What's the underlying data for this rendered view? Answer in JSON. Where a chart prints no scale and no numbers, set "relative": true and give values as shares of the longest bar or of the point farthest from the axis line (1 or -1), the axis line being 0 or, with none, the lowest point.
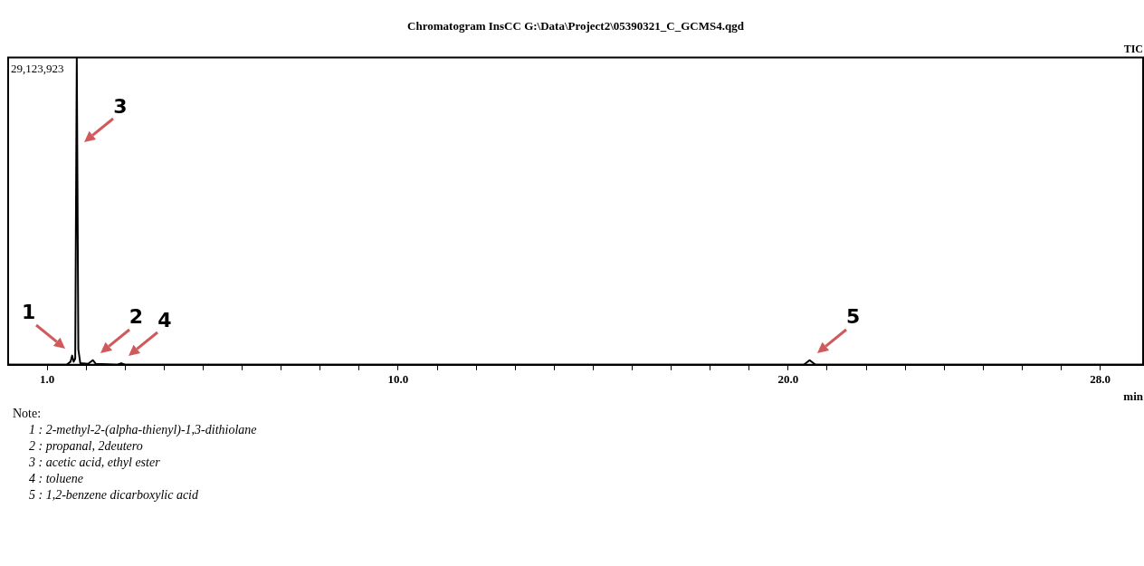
{
  "chart_data": {
    "type": "line",
    "title": "Chromatogram InsCC G:\\Data\\Project2\\05390321_C_GCMS4.qgd",
    "xlabel": "min",
    "relative": true,
    "x": [
      0.0,
      1.5,
      1.6,
      1.64,
      1.68,
      1.72,
      1.76,
      1.8,
      1.85,
      2.05,
      2.17,
      2.25,
      2.8,
      2.9,
      3.0,
      20.4,
      20.55,
      20.7,
      29.1
    ],
    "series": [
      {
        "color": "#000000",
        "values": [
          0,
          0,
          0.01,
          0.03,
          0.01,
          0.02,
          1.0,
          0.05,
          0.005,
          0.003,
          0.015,
          0.003,
          0,
          0.005,
          0,
          0,
          0.015,
          0,
          0
        ]
      }
    ],
    "xlim": [
      0,
      29.1
    ],
    "xticks": [
      {
        "value": 1,
        "label": "1.0"
      },
      {
        "value": 2,
        "label": null
      },
      {
        "value": 3,
        "label": null
      },
      {
        "value": 4,
        "label": null
      },
      {
        "value": 5,
        "label": null
      },
      {
        "value": 6,
        "label": null
      },
      {
        "value": 7,
        "label": null
      },
      {
        "value": 8,
        "label": null
      },
      {
        "value": 9,
        "label": null
      },
      {
        "value": 10,
        "label": "10.0"
      },
      {
        "value": 11,
        "label": null
      },
      {
        "value": 12,
        "label": null
      },
      {
        "value": 13,
        "label": null
      },
      {
        "value": 14,
        "label": null
      },
      {
        "value": 15,
        "label": null
      },
      {
        "value": 16,
        "label": null
      },
      {
        "value": 17,
        "label": null
      },
      {
        "value": 18,
        "label": null
      },
      {
        "value": 19,
        "label": null
      },
      {
        "value": 20,
        "label": "20.0"
      },
      {
        "value": 21,
        "label": null
      },
      {
        "value": 22,
        "label": null
      },
      {
        "value": 23,
        "label": null
      },
      {
        "value": 24,
        "label": null
      },
      {
        "value": 25,
        "label": null
      },
      {
        "value": 26,
        "label": null
      },
      {
        "value": 27,
        "label": null
      },
      {
        "value": 28,
        "label": "28.0"
      }
    ],
    "grid": false,
    "tick_labels": "x",
    "annotations": [
      "29,123,923",
      "TIC",
      {
        "text": "1",
        "x": 1.64,
        "y": 0.03
      },
      {
        "text": "2",
        "x": 2.17,
        "y": 0.015
      },
      {
        "text": "3",
        "x": 1.76,
        "y": 0.7
      },
      {
        "text": "4",
        "x": 2.9,
        "y": 0.005
      },
      {
        "text": "5",
        "x": 20.55,
        "y": 0.015
      },
      "Note:",
      "1 : 2-methyl-2-(alpha-thienyl)-1,3-dithiolane",
      "2 : propanal, 2deutero",
      "3 : acetic acid, ethyl ester",
      "4 : toluene",
      "5 : 1,2-benzene dicarboxylic acid"
    ]
  }
}
